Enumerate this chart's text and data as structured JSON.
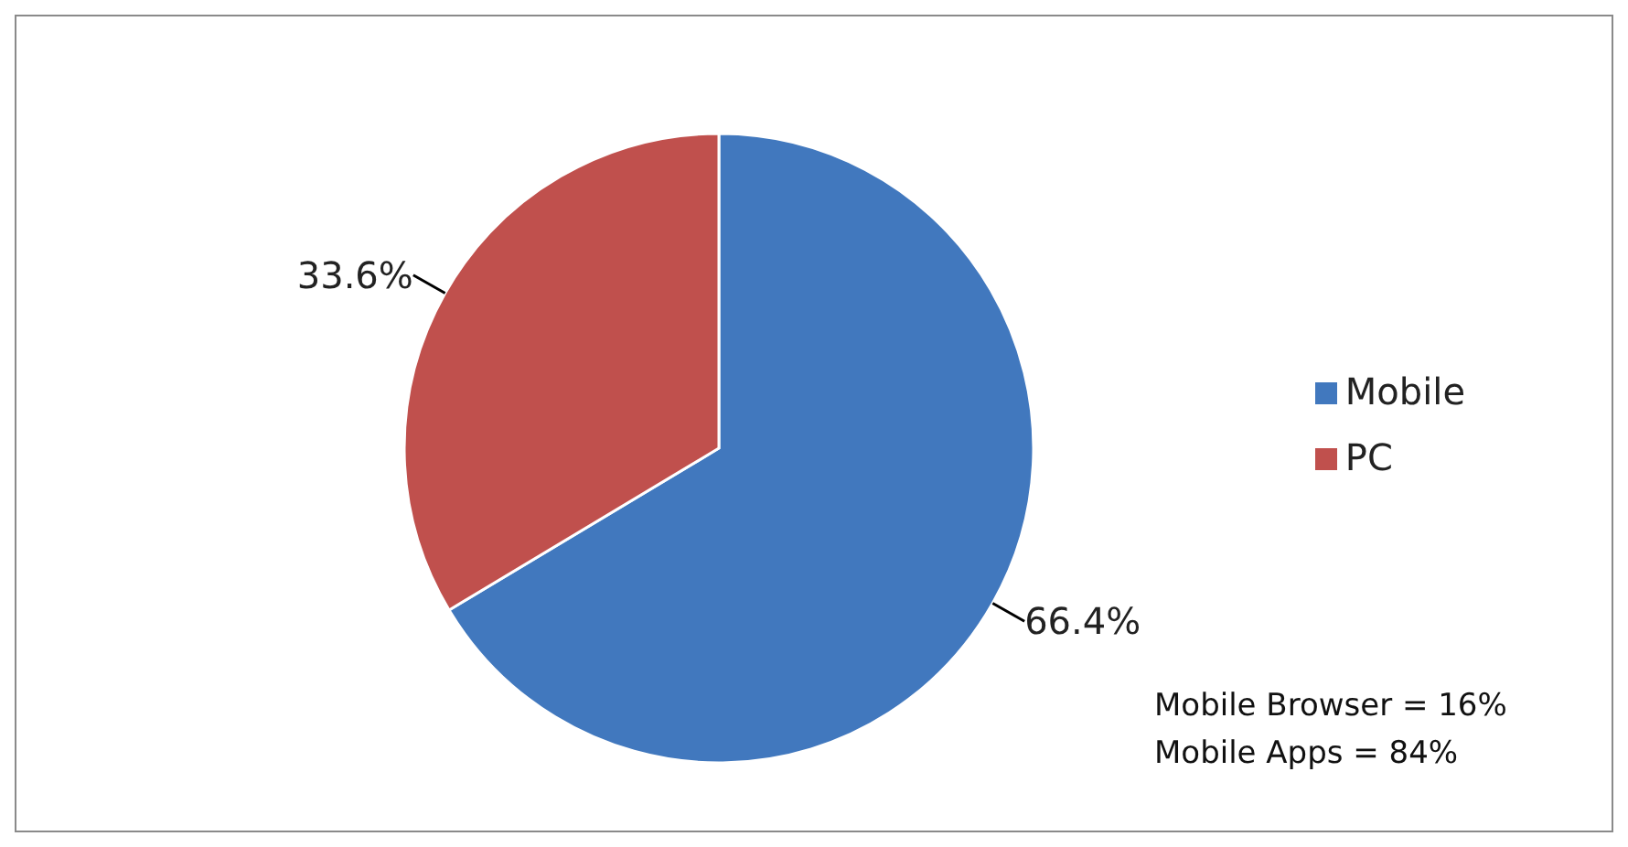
{
  "chart_data": {
    "type": "pie",
    "categories": [
      "Mobile",
      "PC"
    ],
    "values": [
      66.4,
      33.6
    ],
    "colors": [
      "#4178be",
      "#c0504d"
    ],
    "value_labels": [
      "66.4%",
      "33.6%"
    ],
    "legend": "right",
    "annotations": [
      "Mobile Browser = 16%",
      "Mobile Apps = 84%"
    ]
  }
}
